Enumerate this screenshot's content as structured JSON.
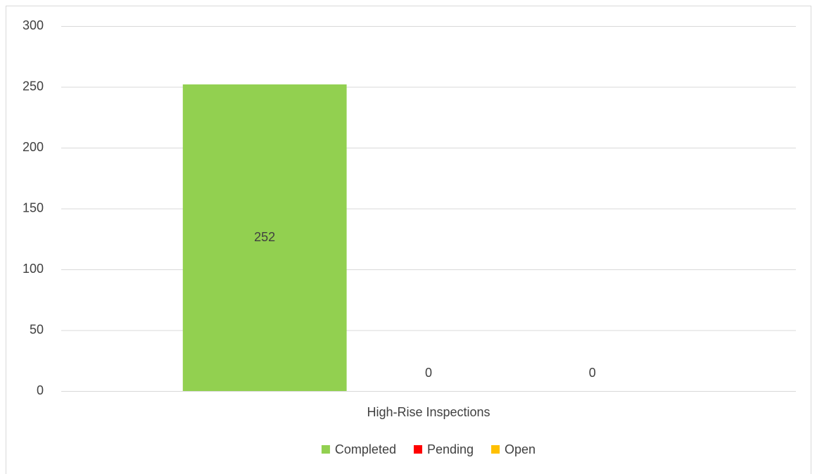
{
  "chart_data": {
    "type": "bar",
    "categories": [
      "High-Rise Inspections"
    ],
    "series": [
      {
        "name": "Completed",
        "color": "#92d050",
        "values": [
          252
        ]
      },
      {
        "name": "Pending",
        "color": "#ff0000",
        "values": [
          0
        ]
      },
      {
        "name": "Open",
        "color": "#ffc000",
        "values": [
          0
        ]
      }
    ],
    "ylim": [
      0,
      300
    ],
    "yticks": [
      0,
      50,
      100,
      150,
      200,
      250,
      300
    ],
    "grid": true,
    "legend": "bottom",
    "data_labels": true
  }
}
